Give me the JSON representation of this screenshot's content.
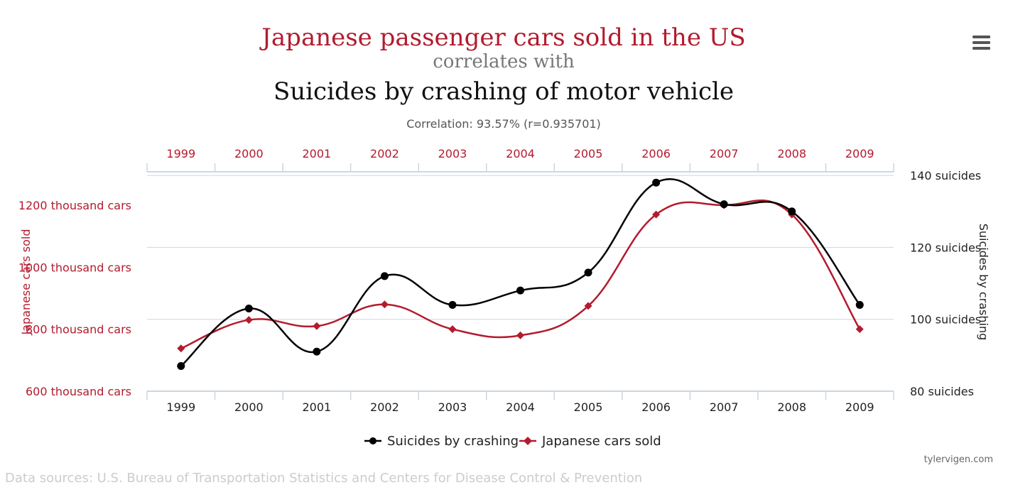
{
  "menu": {
    "icon": "hamburger-menu-icon"
  },
  "header": {
    "title": "Japanese passenger cars sold in the US",
    "connector": "correlates with",
    "subtitle": "Suicides by crashing of motor vehicle",
    "correlation": "Correlation: 93.57% (r=0.935701)"
  },
  "credit": "tylervigen.com",
  "sources": "Data sources: U.S. Bureau of Transportation Statistics and Centers for Disease Control & Prevention",
  "colors": {
    "cars": "#b31b2e",
    "suicides": "#000000",
    "grid": "#ccd6e0"
  },
  "chart_data": {
    "type": "line",
    "x": [
      "1999",
      "2000",
      "2001",
      "2002",
      "2003",
      "2004",
      "2005",
      "2006",
      "2007",
      "2008",
      "2009"
    ],
    "series": [
      {
        "name": "Suicides by crashing",
        "axis": "right",
        "marker": "circle",
        "values": [
          87,
          103,
          91,
          112,
          104,
          108,
          113,
          138,
          132,
          130,
          104
        ]
      },
      {
        "name": "Japanese cars sold",
        "axis": "left",
        "marker": "diamond",
        "values": [
          738,
          830,
          810,
          880,
          800,
          780,
          875,
          1170,
          1200,
          1170,
          800
        ]
      }
    ],
    "left_axis": {
      "title": "Japanese cars sold",
      "ticks": [
        {
          "value": 600,
          "label": "600 thousand cars"
        },
        {
          "value": 800,
          "label": "800 thousand cars"
        },
        {
          "value": 1000,
          "label": "1000 thousand cars"
        },
        {
          "value": 1200,
          "label": "1200 thousand cars"
        }
      ]
    },
    "right_axis": {
      "title": "Suicides by crashing",
      "ticks": [
        {
          "value": 80,
          "label": "80 suicides"
        },
        {
          "value": 100,
          "label": "100 suicides"
        },
        {
          "value": 120,
          "label": "120 suicides"
        },
        {
          "value": 140,
          "label": "140 suicides"
        }
      ],
      "range": [
        80,
        141
      ]
    },
    "grid": true,
    "legend_position": "bottom-center"
  }
}
